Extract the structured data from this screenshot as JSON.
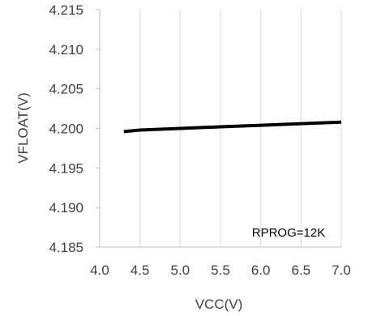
{
  "chart_data": {
    "type": "line",
    "xlabel": "VCC(V)",
    "ylabel": "VFLOAT(V)",
    "xlim": [
      4.0,
      7.0
    ],
    "ylim": [
      4.185,
      4.215
    ],
    "x_ticks": [
      "4.0",
      "4.5",
      "5.0",
      "5.5",
      "6.0",
      "6.5",
      "7.0"
    ],
    "y_ticks": [
      "4.215",
      "4.210",
      "4.205",
      "4.200",
      "4.195",
      "4.190",
      "4.185"
    ],
    "grid": "vertical",
    "series": [
      {
        "x": [
          4.3,
          4.5,
          5.0,
          5.5,
          6.0,
          6.5,
          7.0
        ],
        "y": [
          4.1996,
          4.1998,
          4.2,
          4.2002,
          4.2004,
          4.2006,
          4.2008
        ]
      }
    ],
    "annotation": "RPROG=12K",
    "colors": {
      "line": "#000000",
      "grid": "#d9d9d9",
      "axis": "#bfbfbf",
      "text": "#404040"
    }
  }
}
